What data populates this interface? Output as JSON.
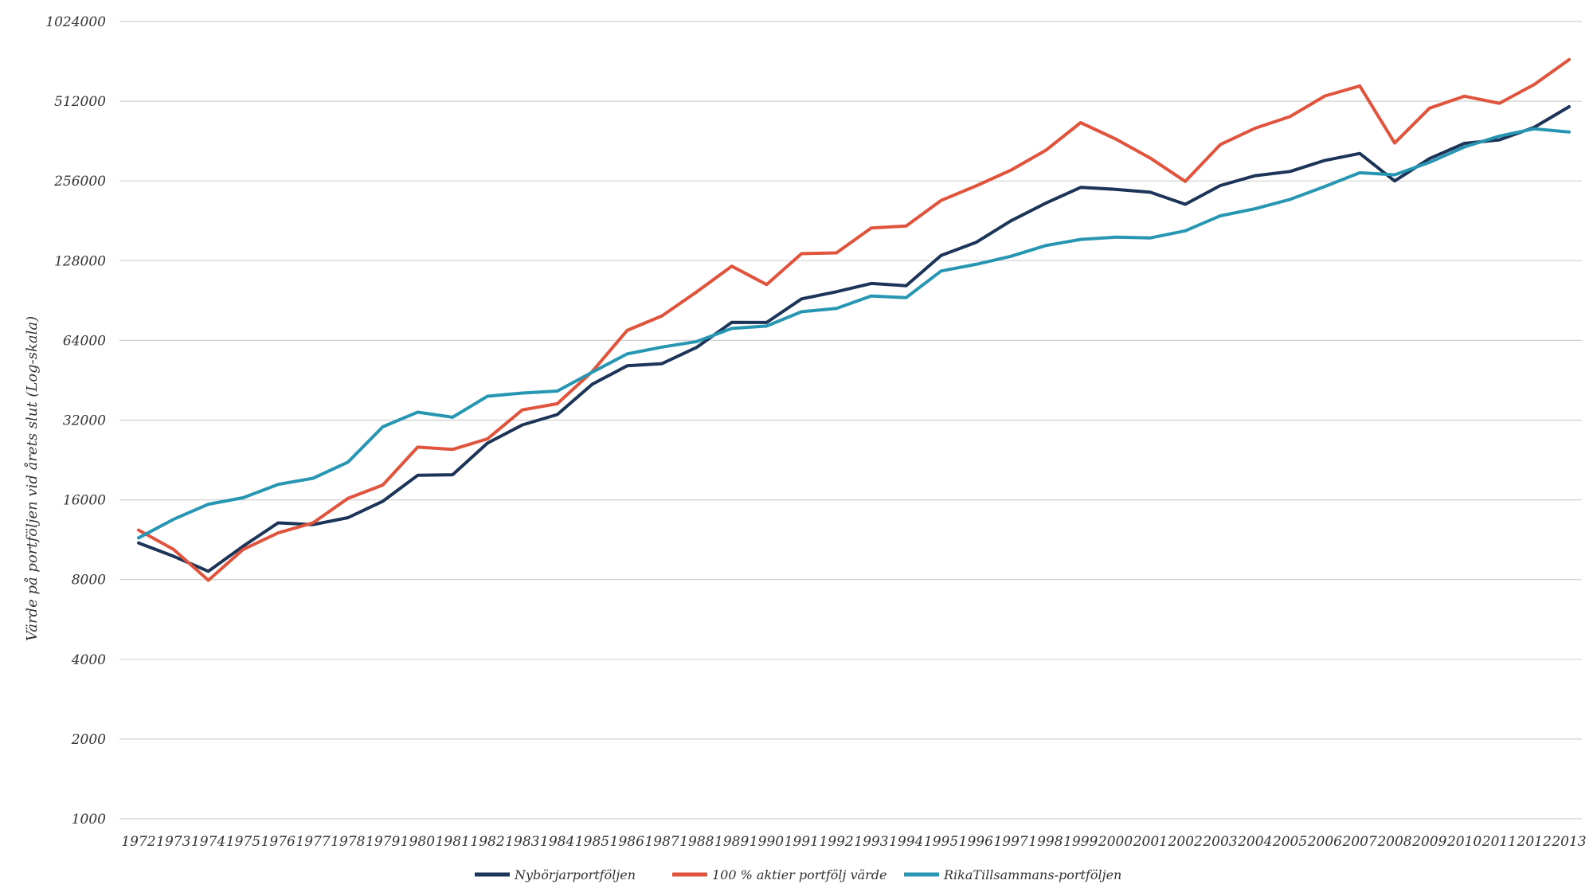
{
  "chart_data": {
    "type": "line",
    "title": "",
    "xlabel": "",
    "ylabel": "Värde på portföljen vid årets slut (Log-skala)",
    "yscale": "log2",
    "ylim": [
      1000,
      1024000
    ],
    "yticks": [
      1000,
      2000,
      4000,
      8000,
      16000,
      32000,
      64000,
      128000,
      256000,
      512000,
      1024000
    ],
    "grid": true,
    "legend_position": "bottom",
    "categories": [
      "1972",
      "1973",
      "1974",
      "1975",
      "1976",
      "1977",
      "1978",
      "1979",
      "1980",
      "1981",
      "1982",
      "1983",
      "1984",
      "1985",
      "1986",
      "1987",
      "1988",
      "1989",
      "1990",
      "1991",
      "1992",
      "1993",
      "1994",
      "1995",
      "1996",
      "1997",
      "1998",
      "1999",
      "2000",
      "2001",
      "2002",
      "2003",
      "2004",
      "2005",
      "2006",
      "2007",
      "2008",
      "2009",
      "2010",
      "2011",
      "2012",
      "2013"
    ],
    "series": [
      {
        "name": "Nybörjarportföljen",
        "color": "#1c3458",
        "values": [
          11000,
          9800,
          8600,
          10700,
          13100,
          12900,
          13700,
          15800,
          19800,
          19900,
          26200,
          30700,
          33600,
          43700,
          51300,
          52300,
          60300,
          74900,
          74800,
          91800,
          97700,
          105000,
          103000,
          134000,
          150000,
          181000,
          211000,
          242000,
          238000,
          232000,
          209000,
          246000,
          268000,
          278000,
          306000,
          325000,
          256000,
          311000,
          355000,
          366000,
          408000,
          488000
        ]
      },
      {
        "name": "100 % aktier portfölj värde",
        "color": "#e0533c",
        "values": [
          12300,
          10400,
          7950,
          10400,
          12000,
          13100,
          16200,
          18200,
          25300,
          24800,
          27200,
          35000,
          36900,
          48800,
          69800,
          79200,
          97700,
          122000,
          104000,
          136000,
          137000,
          170000,
          173000,
          216000,
          245000,
          281000,
          334000,
          425000,
          369000,
          312000,
          255000,
          351000,
          405000,
          448000,
          536000,
          585000,
          356000,
          482000,
          535000,
          503000,
          592000,
          735000
        ]
      },
      {
        "name": "RikaTillsammans-portföljen",
        "color": "#2796b3",
        "values": [
          11500,
          13500,
          15400,
          16300,
          18300,
          19300,
          22200,
          30200,
          34300,
          32800,
          39400,
          40500,
          41200,
          48500,
          56900,
          60400,
          63400,
          71000,
          72500,
          82100,
          84500,
          94200,
          92800,
          117000,
          124000,
          133000,
          146000,
          154000,
          157000,
          156000,
          166000,
          189000,
          201000,
          218000,
          244000,
          275000,
          270000,
          301000,
          344000,
          378000,
          403000,
          392000
        ]
      }
    ]
  }
}
